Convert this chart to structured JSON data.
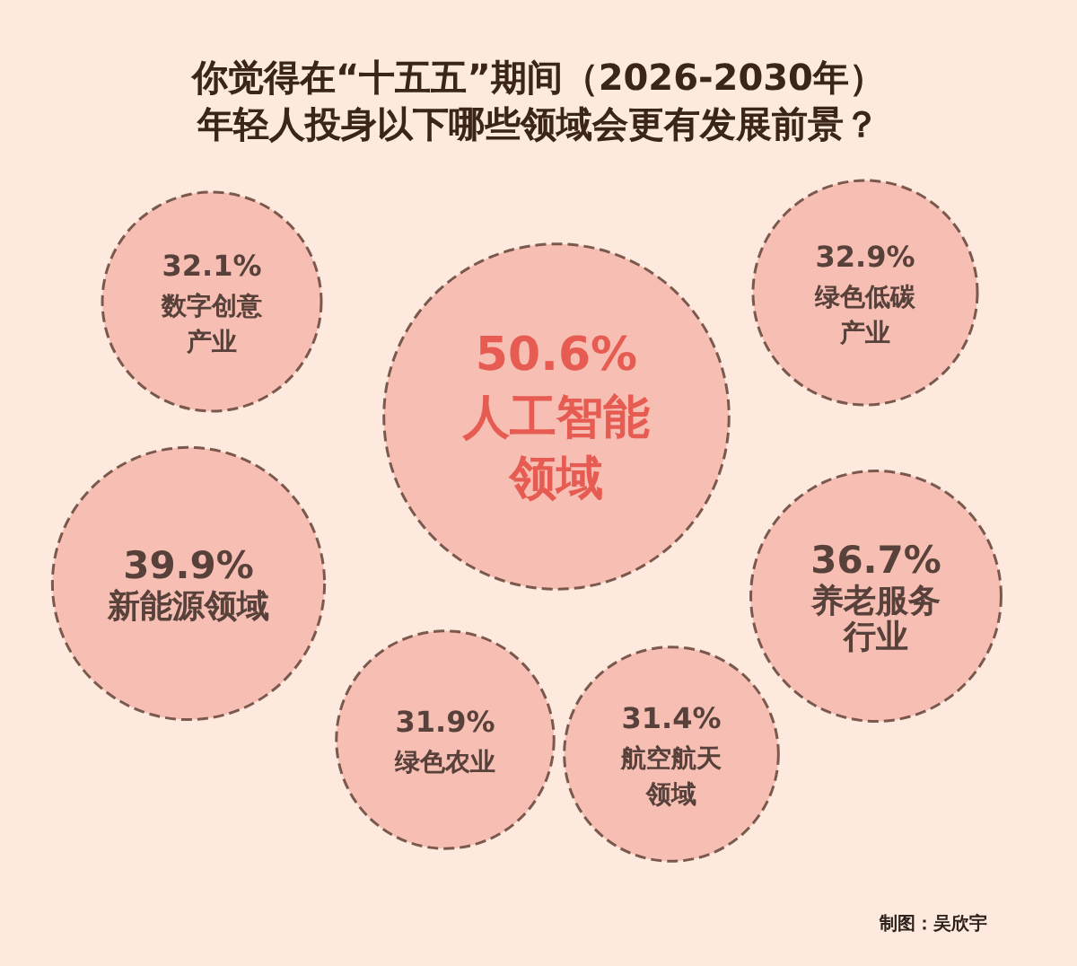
{
  "chart_data": {
    "type": "other",
    "title": "你觉得在“十五五”期间（2026-2030年）",
    "subtitle": "年轻人投身以下哪些领域会更有发展前景？",
    "categories": [
      "数字创意产业",
      "绿色低碳产业",
      "人工智能领域",
      "新能源领域",
      "养老服务行业",
      "绿色农业",
      "航空航天领域"
    ],
    "values": [
      32.1,
      32.9,
      50.6,
      39.9,
      36.7,
      31.9,
      31.4
    ],
    "value_labels": [
      "32.1%",
      "32.9%",
      "50.6%",
      "39.9%",
      "36.7%",
      "31.9%",
      "31.4%"
    ],
    "color": "#f5b4a7",
    "annotations": [
      "制图：吴欣宇"
    ]
  }
}
